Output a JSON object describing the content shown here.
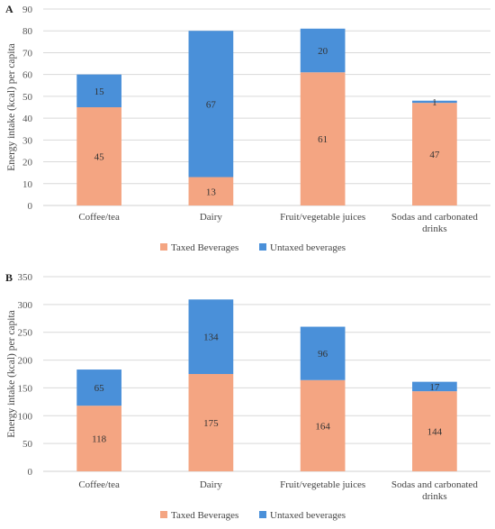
{
  "chart_data": [
    {
      "type": "bar",
      "stacked": true,
      "panel_label": "A",
      "ylabel": "Energy intake (kcal) per capita",
      "categories": [
        "Coffee/tea",
        "Dairy",
        "Fruit/vegetable juices",
        "Sodas and carbonated drinks"
      ],
      "series": [
        {
          "name": "Taxed Beverages",
          "values": [
            45,
            13,
            61,
            47
          ],
          "color": "#F4A582"
        },
        {
          "name": "Untaxed beverages",
          "values": [
            15,
            67,
            20,
            1
          ],
          "color": "#4A90D9"
        }
      ],
      "ylim": [
        0,
        90
      ],
      "yticks": [
        0,
        10,
        20,
        30,
        40,
        50,
        60,
        70,
        80,
        90
      ],
      "grid": true,
      "legend": "bottom"
    },
    {
      "type": "bar",
      "stacked": true,
      "panel_label": "B",
      "ylabel": "Energy intake (kcal) per capita",
      "categories": [
        "Coffee/tea",
        "Dairy",
        "Fruit/vegetable juices",
        "Sodas and carbonated drinks"
      ],
      "series": [
        {
          "name": "Taxed Beverages",
          "values": [
            118,
            175,
            164,
            144
          ],
          "color": "#F4A582"
        },
        {
          "name": "Untaxed beverages",
          "values": [
            65,
            134,
            96,
            17
          ],
          "color": "#4A90D9"
        }
      ],
      "ylim": [
        0,
        350
      ],
      "yticks": [
        0,
        50,
        100,
        150,
        200,
        250,
        300,
        350
      ],
      "grid": true,
      "legend": "bottom"
    }
  ]
}
